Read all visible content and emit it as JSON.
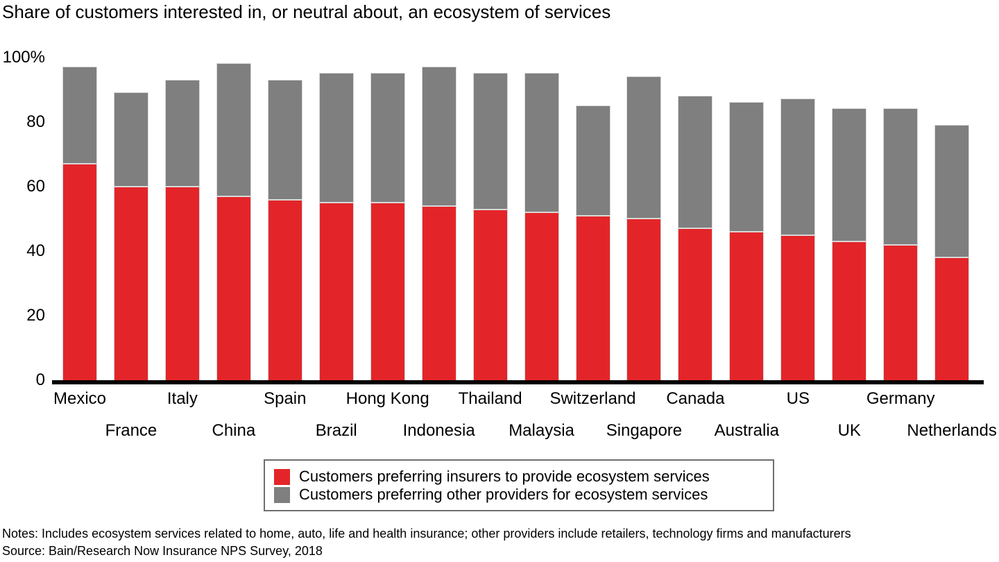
{
  "title": "Share of customers interested in, or neutral about, an ecosystem of services",
  "chart_data": {
    "type": "bar",
    "stacked": true,
    "title": "Share of customers interested in, or neutral about, an ecosystem of services",
    "categories": [
      "Mexico",
      "France",
      "Italy",
      "China",
      "Spain",
      "Brazil",
      "Hong Kong",
      "Indonesia",
      "Thailand",
      "Malaysia",
      "Switzerland",
      "Singapore",
      "Canada",
      "Australia",
      "US",
      "UK",
      "Germany",
      "Netherlands"
    ],
    "series": [
      {
        "name": "Customers preferring insurers to provide ecosystem services",
        "color": "#e32529",
        "values": [
          67,
          60,
          60,
          57,
          56,
          55,
          55,
          54,
          53,
          52,
          51,
          50,
          47,
          46,
          45,
          43,
          42,
          38
        ]
      },
      {
        "name": "Customers preferring other providers for ecosystem services",
        "color": "#7f7f7f",
        "values": [
          30,
          29,
          33,
          41,
          37,
          40,
          40,
          43,
          42,
          43,
          34,
          44,
          41,
          40,
          42,
          41,
          42,
          41
        ]
      }
    ],
    "xlabel": "",
    "ylabel": "",
    "ylim": [
      0,
      100
    ],
    "y_tick_labels": [
      "100%",
      "80",
      "60",
      "40",
      "20",
      "0"
    ],
    "y_tick_values": [
      100,
      80,
      60,
      40,
      20,
      0
    ],
    "grid": false,
    "legend_position": "bottom-center-boxed",
    "x_label_rows": "staggered-two-rows"
  },
  "notes": "Notes: Includes ecosystem services related to home, auto, life and health insurance; other providers include retailers, technology firms and manufacturers",
  "source": "Source: Bain/Research Now Insurance NPS Survey, 2018"
}
